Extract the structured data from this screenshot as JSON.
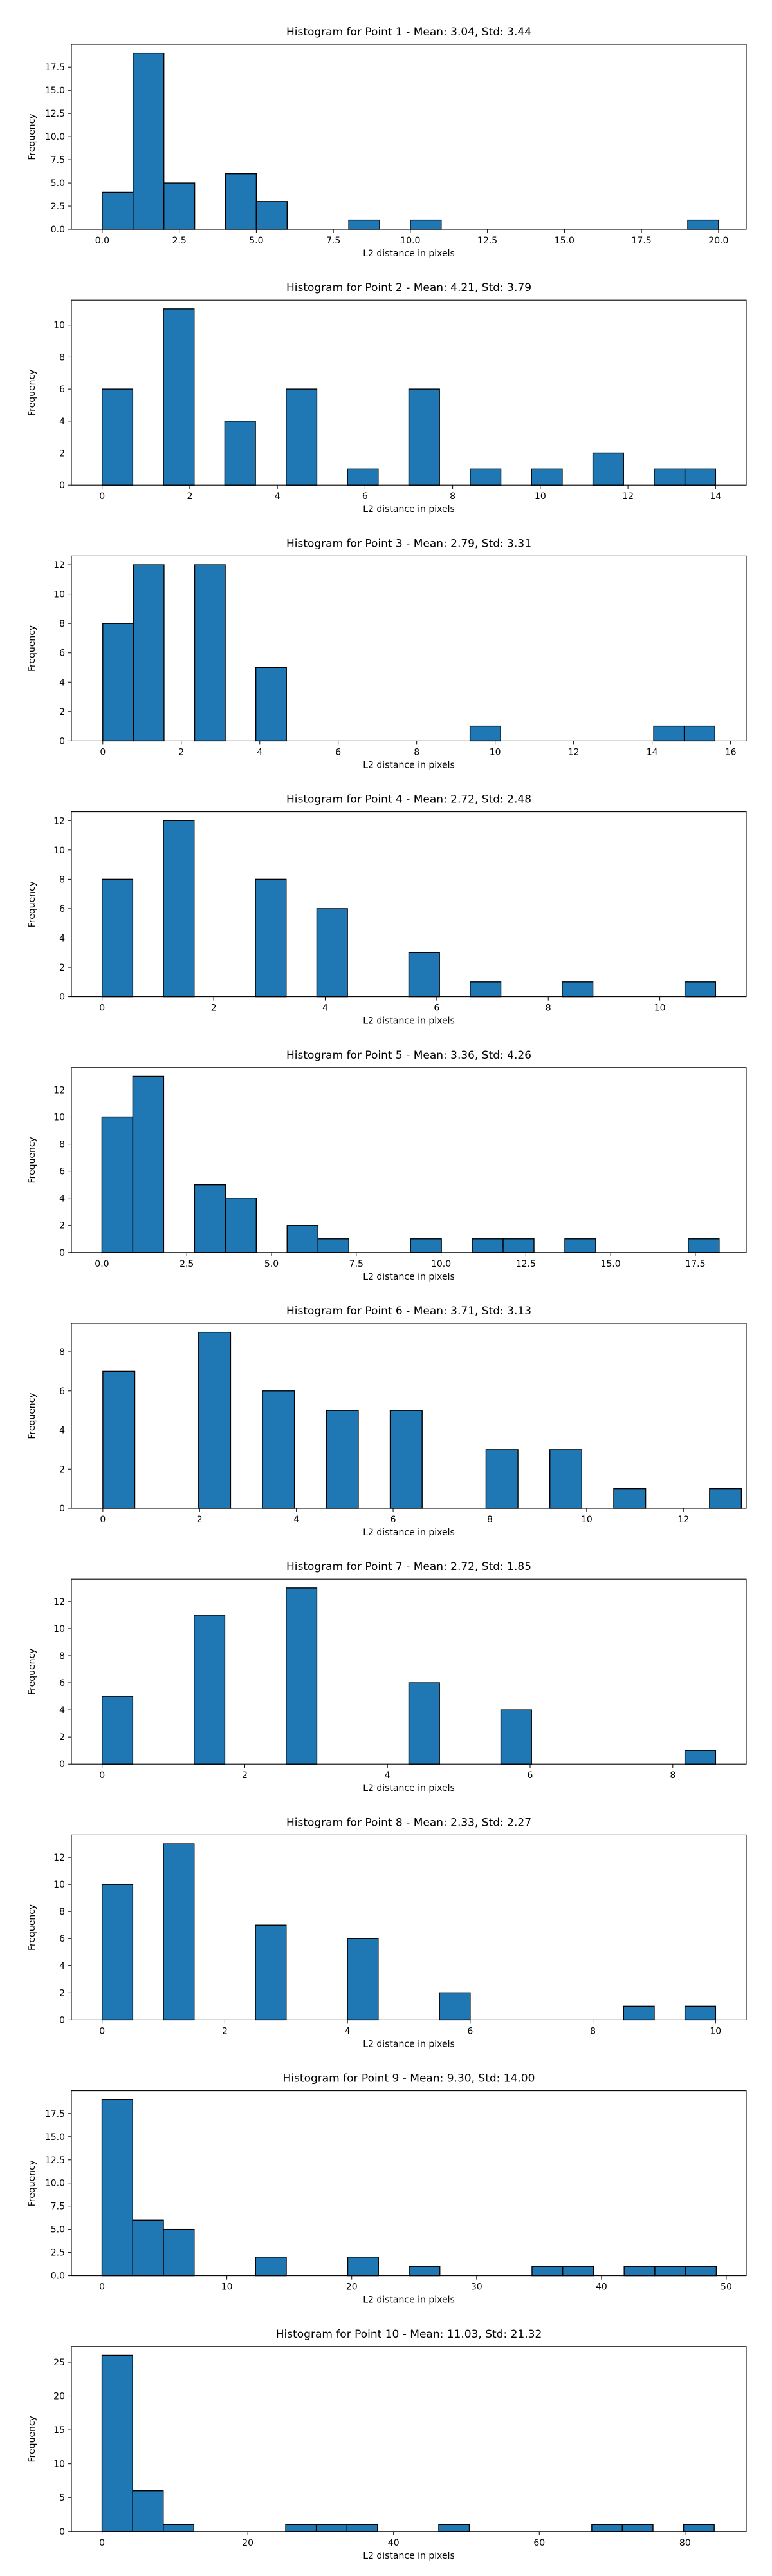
{
  "figure": {
    "panel_count": 10,
    "bar_color": "#1f77b4",
    "edge_color": "#000000"
  },
  "chart_data": [
    {
      "type": "bar",
      "title": "Histogram for Point 1 - Mean: 3.04, Std: 3.44",
      "xlabel": "L2 distance in pixels",
      "ylabel": "Frequency",
      "grid": false,
      "xlim": [
        -1.0,
        20.9
      ],
      "ylim": [
        0,
        19.95
      ],
      "xticks": [
        0.0,
        2.5,
        5.0,
        7.5,
        10.0,
        12.5,
        15.0,
        17.5,
        20.0
      ],
      "xtick_labels": [
        "0.0",
        "2.5",
        "5.0",
        "7.5",
        "10.0",
        "12.5",
        "15.0",
        "17.5",
        "20.0"
      ],
      "yticks": [
        0.0,
        2.5,
        5.0,
        7.5,
        10.0,
        12.5,
        15.0,
        17.5
      ],
      "ytick_labels": [
        "0.0",
        "2.5",
        "5.0",
        "7.5",
        "10.0",
        "12.5",
        "15.0",
        "17.5"
      ],
      "bin_edges": [
        0,
        1,
        2,
        3,
        4,
        5,
        6,
        7,
        8,
        9,
        10,
        11,
        12,
        13,
        14,
        15,
        16,
        17,
        18,
        19,
        20
      ],
      "counts": [
        4,
        19,
        5,
        0,
        6,
        3,
        0,
        0,
        1,
        0,
        1,
        0,
        0,
        0,
        0,
        0,
        0,
        0,
        0,
        1
      ]
    },
    {
      "type": "bar",
      "title": "Histogram for Point 2 - Mean: 4.21, Std: 3.79",
      "xlabel": "L2 distance in pixels",
      "ylabel": "Frequency",
      "grid": false,
      "xlim": [
        -0.7,
        14.7
      ],
      "ylim": [
        0,
        11.55
      ],
      "xticks": [
        0,
        2,
        4,
        6,
        8,
        10,
        12,
        14
      ],
      "xtick_labels": [
        "0",
        "2",
        "4",
        "6",
        "8",
        "10",
        "12",
        "14"
      ],
      "yticks": [
        0,
        2,
        4,
        6,
        8,
        10
      ],
      "ytick_labels": [
        "0",
        "2",
        "4",
        "6",
        "8",
        "10"
      ],
      "bin_edges": [
        0,
        0.7,
        1.4,
        2.1,
        2.8,
        3.5,
        4.2,
        4.9,
        5.6,
        6.3,
        7.0,
        7.7,
        8.4,
        9.1,
        9.8,
        10.5,
        11.2,
        11.9,
        12.6,
        13.3,
        14.0
      ],
      "counts": [
        6,
        0,
        11,
        0,
        4,
        0,
        6,
        0,
        1,
        0,
        6,
        0,
        1,
        0,
        1,
        0,
        2,
        0,
        1,
        1
      ]
    },
    {
      "type": "bar",
      "title": "Histogram for Point 3 - Mean: 2.79, Std: 3.31",
      "xlabel": "L2 distance in pixels",
      "ylabel": "Frequency",
      "grid": false,
      "xlim": [
        -0.8,
        16.4
      ],
      "ylim": [
        0,
        12.6
      ],
      "xticks": [
        0,
        2,
        4,
        6,
        8,
        10,
        12,
        14,
        16
      ],
      "xtick_labels": [
        "0",
        "2",
        "4",
        "6",
        "8",
        "10",
        "12",
        "14",
        "16"
      ],
      "yticks": [
        0,
        2,
        4,
        6,
        8,
        10,
        12
      ],
      "ytick_labels": [
        "0",
        "2",
        "4",
        "6",
        "8",
        "10",
        "12"
      ],
      "bin_edges": [
        0,
        0.78,
        1.56,
        2.34,
        3.12,
        3.9,
        4.68,
        5.46,
        6.24,
        7.02,
        7.8,
        8.58,
        9.36,
        10.14,
        10.92,
        11.7,
        12.48,
        13.26,
        14.04,
        14.82,
        15.6
      ],
      "counts": [
        8,
        12,
        0,
        12,
        0,
        5,
        0,
        0,
        0,
        0,
        0,
        0,
        1,
        0,
        0,
        0,
        0,
        0,
        1,
        1
      ]
    },
    {
      "type": "bar",
      "title": "Histogram for Point 4 - Mean: 2.72, Std: 2.48",
      "xlabel": "L2 distance in pixels",
      "ylabel": "Frequency",
      "grid": false,
      "xlim": [
        -0.55,
        11.55
      ],
      "ylim": [
        0,
        12.6
      ],
      "xticks": [
        0,
        2,
        4,
        6,
        8,
        10
      ],
      "xtick_labels": [
        "0",
        "2",
        "4",
        "6",
        "8",
        "10"
      ],
      "yticks": [
        0,
        2,
        4,
        6,
        8,
        10,
        12
      ],
      "ytick_labels": [
        "0",
        "2",
        "4",
        "6",
        "8",
        "10",
        "12"
      ],
      "bin_edges": [
        0,
        0.55,
        1.1,
        1.65,
        2.2,
        2.75,
        3.3,
        3.85,
        4.4,
        4.95,
        5.5,
        6.05,
        6.6,
        7.15,
        7.7,
        8.25,
        8.8,
        9.35,
        9.9,
        10.45,
        11.0
      ],
      "counts": [
        8,
        0,
        12,
        0,
        0,
        8,
        0,
        6,
        0,
        0,
        3,
        0,
        1,
        0,
        0,
        1,
        0,
        0,
        0,
        1
      ]
    },
    {
      "type": "bar",
      "title": "Histogram for Point 5 - Mean: 3.36, Std: 4.26",
      "xlabel": "L2 distance in pixels",
      "ylabel": "Frequency",
      "grid": false,
      "xlim": [
        -0.9,
        19.0
      ],
      "ylim": [
        0,
        13.65
      ],
      "xticks": [
        0.0,
        2.5,
        5.0,
        7.5,
        10.0,
        12.5,
        15.0,
        17.5
      ],
      "xtick_labels": [
        "0.0",
        "2.5",
        "5.0",
        "7.5",
        "10.0",
        "12.5",
        "15.0",
        "17.5"
      ],
      "yticks": [
        0,
        2,
        4,
        6,
        8,
        10,
        12
      ],
      "ytick_labels": [
        "0",
        "2",
        "4",
        "6",
        "8",
        "10",
        "12"
      ],
      "bin_edges": [
        0,
        0.91,
        1.82,
        2.73,
        3.64,
        4.55,
        5.46,
        6.37,
        7.28,
        8.19,
        9.1,
        10.01,
        10.92,
        11.83,
        12.74,
        13.65,
        14.56,
        15.47,
        16.38,
        17.29,
        18.2
      ],
      "counts": [
        10,
        13,
        0,
        5,
        4,
        0,
        2,
        1,
        0,
        0,
        1,
        0,
        1,
        1,
        0,
        1,
        0,
        0,
        0,
        1
      ]
    },
    {
      "type": "bar",
      "title": "Histogram for Point 6 - Mean: 3.71, Std: 3.13",
      "xlabel": "L2 distance in pixels",
      "ylabel": "Frequency",
      "grid": false,
      "xlim": [
        -0.65,
        13.3
      ],
      "ylim": [
        0,
        9.45
      ],
      "xticks": [
        0,
        2,
        4,
        6,
        8,
        10,
        12
      ],
      "xtick_labels": [
        "0",
        "2",
        "4",
        "6",
        "8",
        "10",
        "12"
      ],
      "yticks": [
        0,
        2,
        4,
        6,
        8
      ],
      "ytick_labels": [
        "0",
        "2",
        "4",
        "6",
        "8"
      ],
      "bin_edges": [
        0,
        0.66,
        1.32,
        1.98,
        2.64,
        3.3,
        3.96,
        4.62,
        5.28,
        5.94,
        6.6,
        7.26,
        7.92,
        8.58,
        9.24,
        9.9,
        10.56,
        11.22,
        11.88,
        12.54,
        13.2
      ],
      "counts": [
        7,
        0,
        0,
        9,
        0,
        6,
        0,
        5,
        0,
        5,
        0,
        0,
        3,
        0,
        3,
        0,
        1,
        0,
        0,
        1
      ]
    },
    {
      "type": "bar",
      "title": "Histogram for Point 7 - Mean: 2.72, Std: 1.85",
      "xlabel": "L2 distance in pixels",
      "ylabel": "Frequency",
      "grid": false,
      "xlim": [
        -0.43,
        9.03
      ],
      "ylim": [
        0,
        13.65
      ],
      "xticks": [
        0,
        2,
        4,
        6,
        8
      ],
      "xtick_labels": [
        "0",
        "2",
        "4",
        "6",
        "8"
      ],
      "yticks": [
        0,
        2,
        4,
        6,
        8,
        10,
        12
      ],
      "ytick_labels": [
        "0",
        "2",
        "4",
        "6",
        "8",
        "10",
        "12"
      ],
      "bin_edges": [
        0,
        0.43,
        0.86,
        1.29,
        1.72,
        2.15,
        2.58,
        3.01,
        3.44,
        3.87,
        4.3,
        4.73,
        5.16,
        5.59,
        6.02,
        6.45,
        6.88,
        7.31,
        7.74,
        8.17,
        8.6
      ],
      "counts": [
        5,
        0,
        0,
        11,
        0,
        0,
        13,
        0,
        0,
        0,
        6,
        0,
        0,
        4,
        0,
        0,
        0,
        0,
        0,
        1
      ]
    },
    {
      "type": "bar",
      "title": "Histogram for Point 8 - Mean: 2.33, Std: 2.27",
      "xlabel": "L2 distance in pixels",
      "ylabel": "Frequency",
      "grid": false,
      "xlim": [
        -0.5,
        10.5
      ],
      "ylim": [
        0,
        13.65
      ],
      "xticks": [
        0,
        2,
        4,
        6,
        8,
        10
      ],
      "xtick_labels": [
        "0",
        "2",
        "4",
        "6",
        "8",
        "10"
      ],
      "yticks": [
        0,
        2,
        4,
        6,
        8,
        10,
        12
      ],
      "ytick_labels": [
        "0",
        "2",
        "4",
        "6",
        "8",
        "10",
        "12"
      ],
      "bin_edges": [
        0,
        0.5,
        1.0,
        1.5,
        2.0,
        2.5,
        3.0,
        3.5,
        4.0,
        4.5,
        5.0,
        5.5,
        6.0,
        6.5,
        7.0,
        7.5,
        8.0,
        8.5,
        9.0,
        9.5,
        10.0
      ],
      "counts": [
        10,
        0,
        13,
        0,
        0,
        7,
        0,
        0,
        6,
        0,
        0,
        2,
        0,
        0,
        0,
        0,
        0,
        1,
        0,
        1
      ]
    },
    {
      "type": "bar",
      "title": "Histogram for Point 9 - Mean: 9.30, Std: 14.00",
      "xlabel": "L2 distance in pixels",
      "ylabel": "Frequency",
      "grid": false,
      "xlim": [
        -2.45,
        51.6
      ],
      "ylim": [
        0,
        19.95
      ],
      "xticks": [
        0,
        10,
        20,
        30,
        40,
        50
      ],
      "xtick_labels": [
        "0",
        "10",
        "20",
        "30",
        "40",
        "50"
      ],
      "yticks": [
        0.0,
        2.5,
        5.0,
        7.5,
        10.0,
        12.5,
        15.0,
        17.5
      ],
      "ytick_labels": [
        "0.0",
        "2.5",
        "5.0",
        "7.5",
        "10.0",
        "12.5",
        "15.0",
        "17.5"
      ],
      "bin_edges": [
        0,
        2.46,
        4.92,
        7.38,
        9.84,
        12.3,
        14.76,
        17.22,
        19.68,
        22.14,
        24.6,
        27.06,
        29.52,
        31.98,
        34.44,
        36.9,
        39.36,
        41.82,
        44.28,
        46.74,
        49.2
      ],
      "counts": [
        19,
        6,
        5,
        0,
        0,
        2,
        0,
        0,
        2,
        0,
        1,
        0,
        0,
        0,
        1,
        1,
        0,
        1,
        1,
        1
      ]
    },
    {
      "type": "bar",
      "title": "Histogram for Point 10 - Mean: 11.03, Std: 21.32",
      "xlabel": "L2 distance in pixels",
      "ylabel": "Frequency",
      "grid": false,
      "xlim": [
        -4.2,
        88.4
      ],
      "ylim": [
        0,
        27.3
      ],
      "xticks": [
        0,
        20,
        40,
        60,
        80
      ],
      "xtick_labels": [
        "0",
        "20",
        "40",
        "60",
        "80"
      ],
      "yticks": [
        0,
        5,
        10,
        15,
        20,
        25
      ],
      "ytick_labels": [
        "0",
        "5",
        "10",
        "15",
        "20",
        "25"
      ],
      "bin_edges": [
        0,
        4.2,
        8.4,
        12.6,
        16.8,
        21.0,
        25.2,
        29.4,
        33.6,
        37.8,
        42.0,
        46.2,
        50.4,
        54.6,
        58.8,
        63.0,
        67.2,
        71.4,
        75.6,
        79.8,
        84.0
      ],
      "counts": [
        26,
        6,
        1,
        0,
        0,
        0,
        1,
        1,
        1,
        0,
        0,
        1,
        0,
        0,
        0,
        0,
        1,
        1,
        0,
        1
      ]
    }
  ]
}
